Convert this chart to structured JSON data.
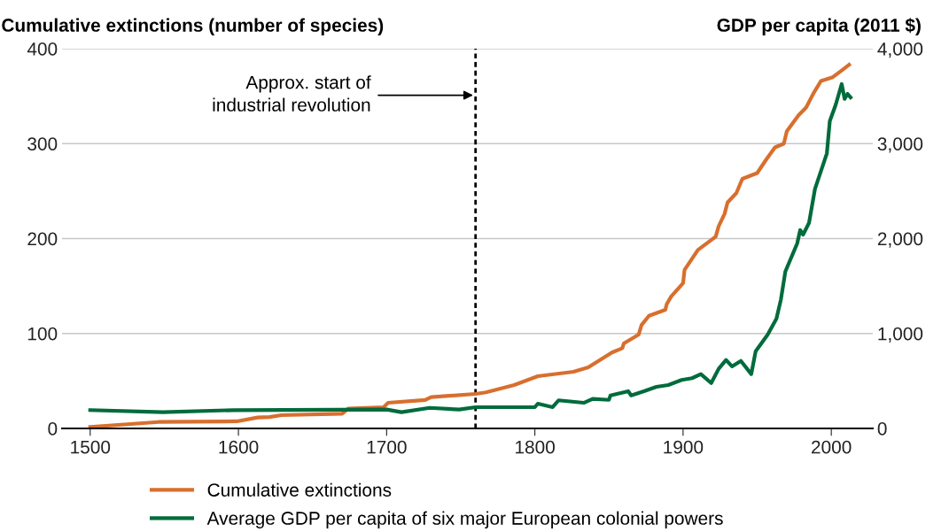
{
  "chart_data": {
    "type": "line",
    "ylabel": "Cumulative extinctions (number of species)",
    "y2label": "GDP per capita (2011 $)",
    "xlim": [
      1481,
      2028
    ],
    "xticks": [
      1500,
      1600,
      1700,
      1800,
      1900,
      2000
    ],
    "ylim": [
      0,
      400
    ],
    "yticks": [
      0,
      100,
      200,
      300,
      400
    ],
    "y2lim": [
      0,
      4000
    ],
    "y2ticks": [
      {
        "value": 0,
        "label": "0"
      },
      {
        "value": 1000,
        "label": "1,000"
      },
      {
        "value": 2000,
        "label": "2,000"
      },
      {
        "value": 3000,
        "label": "3,000"
      },
      {
        "value": 4000,
        "label": "4,000"
      }
    ],
    "grid": "y",
    "legend": "bottom",
    "marker": "none",
    "line_style": "solid",
    "series": [
      {
        "name": "Cumulative extinctions",
        "color": "#d86f2e",
        "x": [
          1500,
          1546,
          1599,
          1613,
          1621,
          1629,
          1670,
          1674,
          1698,
          1701,
          1726,
          1730,
          1760,
          1767,
          1786,
          1802,
          1826,
          1836,
          1852,
          1859,
          1860,
          1870,
          1872,
          1877,
          1888,
          1889,
          1892,
          1900,
          1901,
          1910,
          1922,
          1924,
          1928,
          1930,
          1936,
          1940,
          1950,
          1956,
          1962,
          1968,
          1970,
          1978,
          1983,
          1988,
          1993,
          2001,
          2007,
          2012
        ],
        "values": [
          1.6,
          6.8,
          7.5,
          11.5,
          12,
          14,
          15.5,
          20.8,
          22.4,
          27,
          30,
          33,
          36.4,
          38,
          45.7,
          55,
          59.7,
          64.3,
          80,
          84.5,
          89.5,
          98.8,
          109,
          118.7,
          125,
          131,
          139,
          153,
          167,
          188,
          202,
          213,
          226,
          238,
          248,
          263,
          269,
          283,
          296,
          300,
          313,
          330,
          338,
          353,
          366,
          370,
          377,
          383
        ]
      },
      {
        "name": "Average GDP per capita of six major European colonial powers",
        "color": "#006b3c",
        "axis": "y2",
        "x": [
          1500,
          1549,
          1597,
          1700,
          1710,
          1729,
          1749,
          1760,
          1800,
          1802,
          1812,
          1816,
          1833,
          1839,
          1850,
          1851,
          1863,
          1865,
          1874,
          1882,
          1890,
          1899,
          1906,
          1912,
          1919,
          1924,
          1929,
          1933,
          1939,
          1946,
          1949,
          1957,
          1963,
          1966,
          1969,
          1977,
          1979,
          1981,
          1985,
          1989,
          1997,
          1999,
          2003,
          2007,
          2009,
          2011,
          2013
        ],
        "values": [
          193,
          171,
          193,
          199,
          171,
          217,
          199,
          224,
          224,
          261,
          224,
          296,
          270,
          311,
          301,
          348,
          392,
          348,
          394,
          438,
          457,
          510,
          529,
          572,
          478,
          628,
          721,
          653,
          711,
          572,
          814,
          986,
          1156,
          1358,
          1653,
          1949,
          2089,
          2042,
          2166,
          2524,
          2897,
          3238,
          3410,
          3627,
          3471,
          3524,
          3487
        ]
      }
    ],
    "ref_lines": [
      {
        "axis": "x",
        "value": 1760,
        "color": "#000000",
        "line_style": "dotted"
      }
    ],
    "annotations": [
      {
        "text": "Approx. start of\nindustrial revolution",
        "x": 1760,
        "y": 351
      }
    ]
  }
}
